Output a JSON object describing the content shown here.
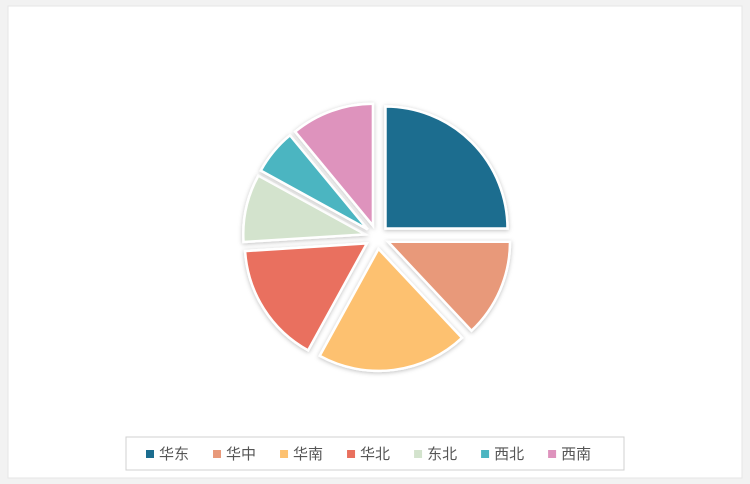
{
  "chart_data": {
    "type": "pie",
    "categories": [
      "华东",
      "华中",
      "华南",
      "华北",
      "东北",
      "西北",
      "西南"
    ],
    "values": [
      25,
      13,
      20,
      16,
      9,
      6,
      11
    ],
    "colors": [
      "#1b6d8f",
      "#e8997a",
      "#fdc170",
      "#e9705e",
      "#d3e3cd",
      "#4bb5c1",
      "#de93bd"
    ],
    "legend": "bottom"
  }
}
